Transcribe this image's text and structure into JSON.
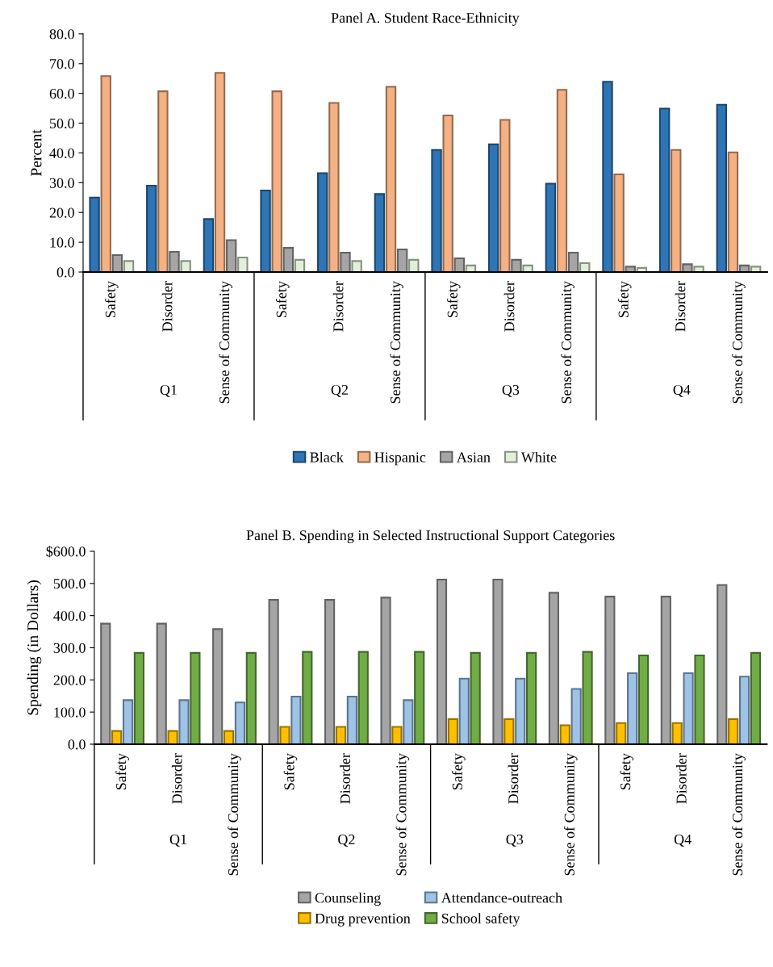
{
  "chart_data": [
    {
      "type": "bar",
      "title": "Panel A. Student Race-Ethnicity",
      "ylabel": "Percent",
      "categories": [
        "Safety",
        "Disorder",
        "Sense of Community",
        "Safety",
        "Disorder",
        "Sense of Community",
        "Safety",
        "Disorder",
        "Sense of Community",
        "Safety",
        "Disorder",
        "Sense of Community"
      ],
      "annotations": [
        "Q1",
        "Q2",
        "Q3",
        "Q4"
      ],
      "series": [
        {
          "name": "Black",
          "color": "#2e75b6",
          "values": [
            25.0,
            29.0,
            17.8,
            27.4,
            33.2,
            26.2,
            41.0,
            42.9,
            29.7,
            63.9,
            54.9,
            56.2
          ]
        },
        {
          "name": "Hispanic",
          "color": "#f4b183",
          "values": [
            65.8,
            60.7,
            66.9,
            60.7,
            56.8,
            62.2,
            52.6,
            51.1,
            61.2,
            32.8,
            41.0,
            40.2
          ]
        },
        {
          "name": "Asian",
          "color": "#a5a5a5",
          "values": [
            5.7,
            6.8,
            10.7,
            8.1,
            6.5,
            7.6,
            4.6,
            4.1,
            6.5,
            1.8,
            2.6,
            2.2
          ]
        },
        {
          "name": "White",
          "color": "#e2f0d9",
          "values": [
            3.7,
            3.7,
            4.9,
            4.1,
            3.7,
            4.1,
            2.2,
            2.2,
            3.0,
            1.4,
            1.8,
            1.8
          ]
        }
      ],
      "ylim": [
        0,
        80
      ],
      "yticks": [
        {
          "value": 0,
          "label": "0.0"
        },
        {
          "value": 10,
          "label": "10.0"
        },
        {
          "value": 20,
          "label": "20.0"
        },
        {
          "value": 30,
          "label": "30.0"
        },
        {
          "value": 40,
          "label": "40.0"
        },
        {
          "value": 50,
          "label": "50.0"
        },
        {
          "value": 60,
          "label": "60.0"
        },
        {
          "value": 70,
          "label": "70.0"
        },
        {
          "value": 80,
          "label": "80.0"
        }
      ],
      "grid": false,
      "legend": "bottom"
    },
    {
      "type": "bar",
      "title": "Panel B. Spending in Selected Instructional Support Categories",
      "ylabel": "Spending (in Dollars)",
      "categories": [
        "Safety",
        "Disorder",
        "Sense of Community",
        "Safety",
        "Disorder",
        "Sense of Community",
        "Safety",
        "Disorder",
        "Sense of Community",
        "Safety",
        "Disorder",
        "Sense of Community"
      ],
      "annotations": [
        "Q1",
        "Q2",
        "Q3",
        "Q4"
      ],
      "series": [
        {
          "name": "Counseling",
          "color": "#a5a5a5",
          "values": [
            375,
            375,
            358,
            449,
            449,
            456,
            512,
            512,
            471,
            459,
            459,
            495
          ]
        },
        {
          "name": "Drug prevention",
          "color": "#ffc000",
          "values": [
            41,
            41,
            41,
            54,
            54,
            54,
            78,
            78,
            59,
            66,
            66,
            78
          ]
        },
        {
          "name": "Attendance-outreach",
          "color": "#9dc3e6",
          "values": [
            137,
            137,
            130,
            148,
            148,
            137,
            204,
            204,
            172,
            221,
            221,
            210
          ]
        },
        {
          "name": "School safety",
          "color": "#70ad47",
          "values": [
            284,
            284,
            284,
            287,
            287,
            287,
            284,
            284,
            287,
            276,
            276,
            284
          ]
        }
      ],
      "ylim": [
        0,
        600
      ],
      "yticks": [
        {
          "value": 0,
          "label": "0.0"
        },
        {
          "value": 100,
          "label": "100.0"
        },
        {
          "value": 200,
          "label": "200.0"
        },
        {
          "value": 300,
          "label": "300.0"
        },
        {
          "value": 400,
          "label": "400.0"
        },
        {
          "value": 500,
          "label": "500.0"
        },
        {
          "value": 600,
          "label": "$600.0"
        }
      ],
      "grid": false,
      "legend": "bottom"
    }
  ]
}
